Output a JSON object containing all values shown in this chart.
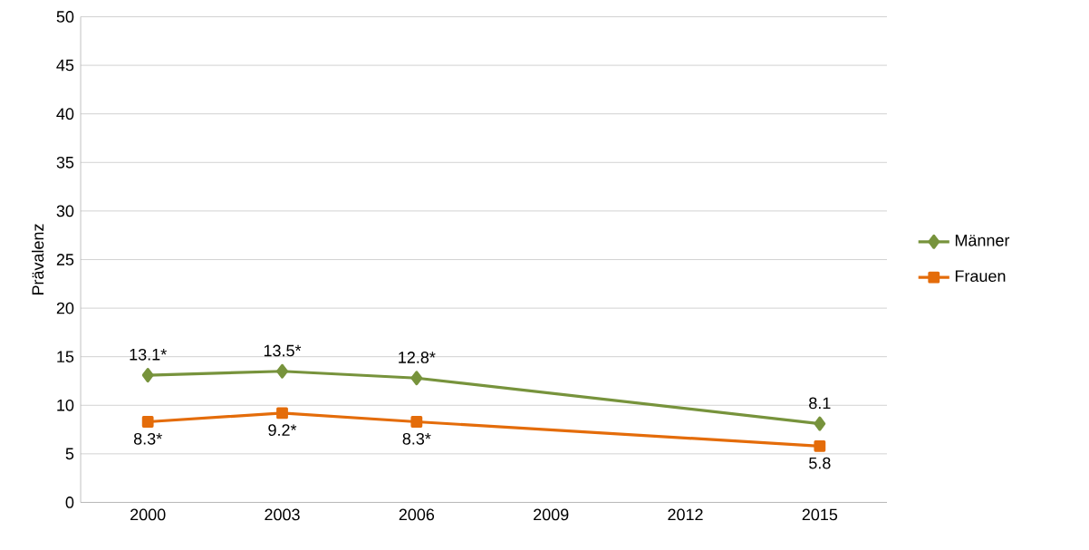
{
  "chart_data": {
    "type": "line",
    "ylabel": "Prävalenz",
    "categories": [
      "2000",
      "2003",
      "2006",
      "2009",
      "2012",
      "2015"
    ],
    "series": [
      {
        "name": "Männer",
        "color": "#77933c",
        "marker": "diamond",
        "values": [
          13.1,
          13.5,
          12.8,
          null,
          null,
          8.1
        ],
        "value_labels": [
          "13.1*",
          "13.5*",
          "12.8*",
          null,
          null,
          "8.1"
        ]
      },
      {
        "name": "Frauen",
        "color": "#e46c0a",
        "marker": "square",
        "values": [
          8.3,
          9.2,
          8.3,
          null,
          null,
          5.8
        ],
        "value_labels": [
          "8.3*",
          "9.2*",
          "8.3*",
          null,
          null,
          "5.8"
        ]
      }
    ],
    "ylim": [
      0,
      50
    ],
    "yticks": [
      0,
      5,
      10,
      15,
      20,
      25,
      30,
      35,
      40,
      45,
      50
    ],
    "grid": "y",
    "legend": "right"
  }
}
